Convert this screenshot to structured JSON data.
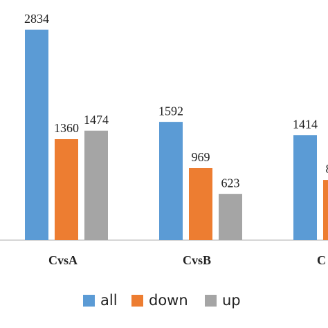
{
  "chart_data": {
    "type": "bar",
    "categories": [
      "CvsA",
      "CvsB",
      "C"
    ],
    "series": [
      {
        "name": "all",
        "color": "#5b9bd5",
        "values": [
          2834,
          1592,
          1414
        ]
      },
      {
        "name": "down",
        "color": "#ed7d31",
        "values": [
          1360,
          969,
          810
        ]
      },
      {
        "name": "up",
        "color": "#a5a5a5",
        "values": [
          1474,
          623,
          null
        ]
      }
    ],
    "ylim": [
      0,
      3000
    ]
  }
}
